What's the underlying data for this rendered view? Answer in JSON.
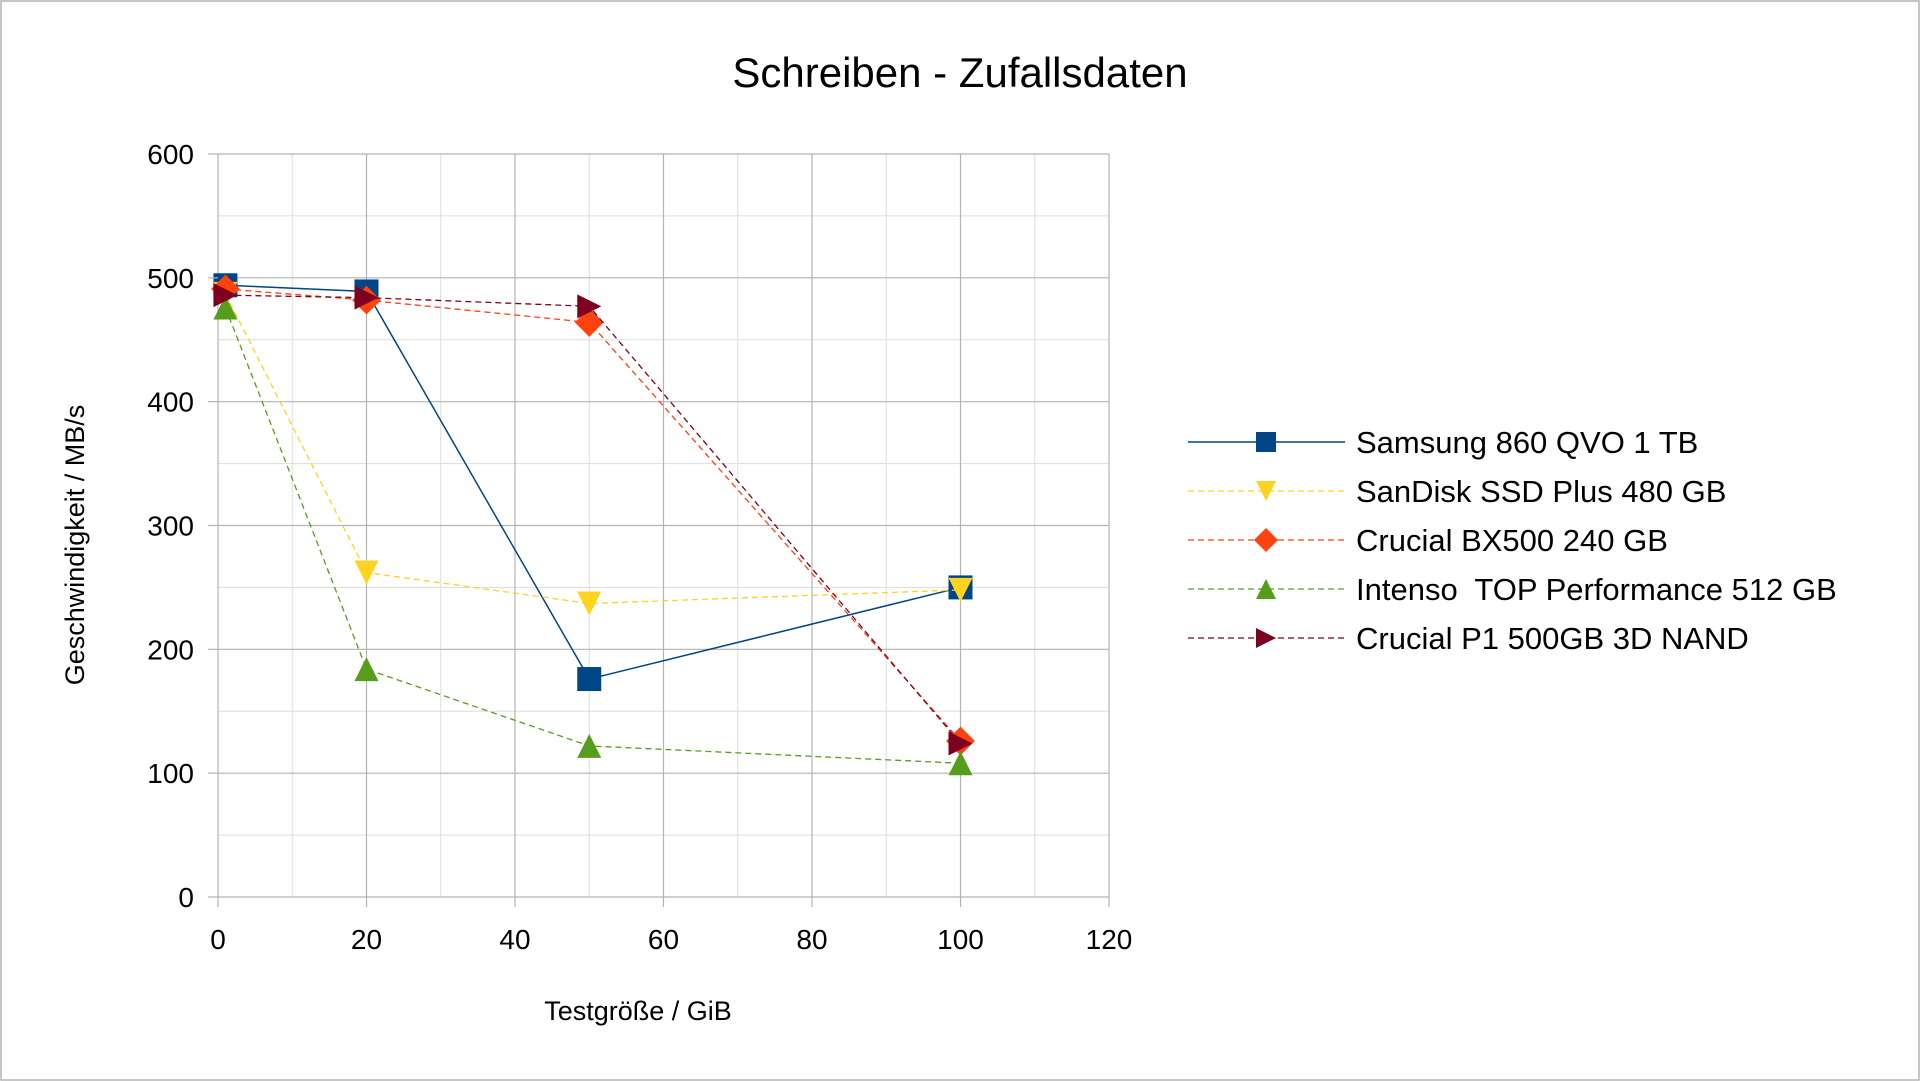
{
  "chart_data": {
    "type": "line",
    "title": "Schreiben - Zufallsdaten",
    "xlabel": "Testgröße / GiB",
    "ylabel": "Geschwindigkeit / MB/s",
    "xlim": [
      0,
      120
    ],
    "ylim": [
      0,
      600
    ],
    "xticks": [
      0,
      20,
      40,
      60,
      80,
      100,
      120
    ],
    "yticks": [
      0,
      100,
      200,
      300,
      400,
      500,
      600
    ],
    "xtick_labels": [
      "0",
      "20",
      "40",
      "60",
      "80",
      "100",
      "120"
    ],
    "ytick_labels": [
      "0",
      "100",
      "200",
      "300",
      "400",
      "500",
      "600"
    ],
    "grid": true,
    "legend_position": "right",
    "series": [
      {
        "name": "Samsung 860 QVO 1 TB",
        "color": "#004586",
        "marker": "square",
        "dashed": false,
        "x": [
          1,
          20,
          50,
          100
        ],
        "values": [
          494,
          489,
          176,
          250
        ]
      },
      {
        "name": "SanDisk SSD Plus 480 GB",
        "color": "#ffd320",
        "marker": "triangle-down",
        "dashed": true,
        "x": [
          1,
          20,
          50,
          100
        ],
        "values": [
          487,
          262,
          237,
          248
        ]
      },
      {
        "name": "Crucial BX500 240 GB",
        "color": "#ff420e",
        "marker": "diamond",
        "dashed": true,
        "x": [
          1,
          20,
          50,
          100
        ],
        "values": [
          491,
          482,
          464,
          126
        ]
      },
      {
        "name": "Intenso  TOP Performance 512 GB",
        "color": "#579d1c",
        "marker": "triangle-up",
        "dashed": true,
        "x": [
          1,
          20,
          50,
          100
        ],
        "values": [
          476,
          184,
          122,
          108
        ]
      },
      {
        "name": "Crucial P1 500GB 3D NAND",
        "color": "#7e0021",
        "marker": "triangle-right",
        "dashed": true,
        "x": [
          1,
          20,
          50,
          100
        ],
        "values": [
          486,
          484,
          477,
          124
        ]
      }
    ]
  }
}
